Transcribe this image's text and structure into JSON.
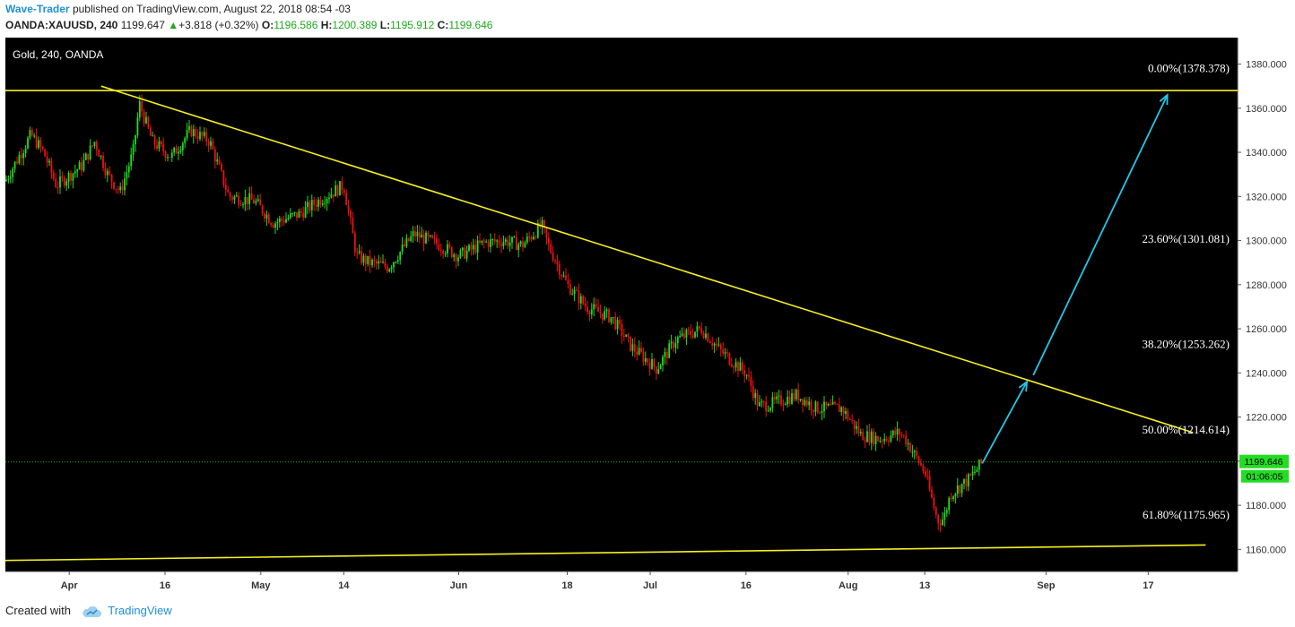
{
  "header": {
    "author": "Wave-Trader",
    "published_text": "published on TradingView.com, August 22, 2018 08:54 -03",
    "symbol": "OANDA:XAUUSD, 240",
    "last": "1199.647",
    "change": "+3.818 (+0.32%)",
    "open_label": "O:",
    "open": "1196.586",
    "high_label": "H:",
    "high": "1200.389",
    "low_label": "L:",
    "low": "1195.912",
    "close_label": "C:",
    "close": "1199.646"
  },
  "footer": {
    "created_with": "Created with",
    "brand": "TradingView"
  },
  "colors": {
    "background": "#000000",
    "up": "#22dd22",
    "down": "#ee1111",
    "trendline": "#f5f020",
    "arrow": "#22c8e8",
    "price_line": "#22aa22",
    "price_tag": "#22dd22",
    "fib_text": "#ffffff"
  },
  "chart_data": {
    "type": "candlestick",
    "title": "Gold, 240, OANDA",
    "x_ticks": [
      "Apr",
      "16",
      "May",
      "14",
      "Jun",
      "18",
      "Jul",
      "16",
      "Aug",
      "13",
      "Sep",
      "17"
    ],
    "y_ticks": [
      "1160.000",
      "1180.000",
      "1200.000",
      "1220.000",
      "1240.000",
      "1260.000",
      "1280.000",
      "1300.000",
      "1320.000",
      "1340.000",
      "1360.000",
      "1380.000"
    ],
    "ylim": [
      1150,
      1392
    ],
    "series": [
      {
        "key": "close_path",
        "points": [
          [
            "2018-03-22",
            1327
          ],
          [
            "2018-03-26",
            1348
          ],
          [
            "2018-03-28",
            1340
          ],
          [
            "2018-03-30",
            1325
          ],
          [
            "2018-04-03",
            1334
          ],
          [
            "2018-04-05",
            1345
          ],
          [
            "2018-04-07",
            1330
          ],
          [
            "2018-04-09",
            1322
          ],
          [
            "2018-04-11",
            1340
          ],
          [
            "2018-04-12",
            1362
          ],
          [
            "2018-04-14",
            1345
          ],
          [
            "2018-04-17",
            1338
          ],
          [
            "2018-04-20",
            1350
          ],
          [
            "2018-04-23",
            1345
          ],
          [
            "2018-04-26",
            1320
          ],
          [
            "2018-04-30",
            1318
          ],
          [
            "2018-05-03",
            1308
          ],
          [
            "2018-05-07",
            1312
          ],
          [
            "2018-05-10",
            1318
          ],
          [
            "2018-05-14",
            1325
          ],
          [
            "2018-05-16",
            1293
          ],
          [
            "2018-05-18",
            1290
          ],
          [
            "2018-05-21",
            1288
          ],
          [
            "2018-05-25",
            1303
          ],
          [
            "2018-05-29",
            1298
          ],
          [
            "2018-06-01",
            1293
          ],
          [
            "2018-06-05",
            1299
          ],
          [
            "2018-06-08",
            1300
          ],
          [
            "2018-06-11",
            1298
          ],
          [
            "2018-06-14",
            1307
          ],
          [
            "2018-06-15",
            1298
          ],
          [
            "2018-06-18",
            1280
          ],
          [
            "2018-06-21",
            1270
          ],
          [
            "2018-06-25",
            1265
          ],
          [
            "2018-06-28",
            1252
          ],
          [
            "2018-07-02",
            1242
          ],
          [
            "2018-07-05",
            1255
          ],
          [
            "2018-07-09",
            1260
          ],
          [
            "2018-07-12",
            1250
          ],
          [
            "2018-07-16",
            1240
          ],
          [
            "2018-07-18",
            1225
          ],
          [
            "2018-07-20",
            1226
          ],
          [
            "2018-07-24",
            1230
          ],
          [
            "2018-07-27",
            1224
          ],
          [
            "2018-07-31",
            1224
          ],
          [
            "2018-08-03",
            1212
          ],
          [
            "2018-08-06",
            1210
          ],
          [
            "2018-08-09",
            1213
          ],
          [
            "2018-08-10",
            1210
          ],
          [
            "2018-08-13",
            1195
          ],
          [
            "2018-08-15",
            1173
          ],
          [
            "2018-08-16",
            1174
          ],
          [
            "2018-08-17",
            1185
          ],
          [
            "2018-08-20",
            1192
          ],
          [
            "2018-08-22",
            1199.6
          ]
        ]
      }
    ],
    "last_price": "1199.646",
    "countdown": "01:06:05",
    "fib_levels": [
      {
        "label": "0.00%(1378.378)",
        "value": 1378.378
      },
      {
        "label": "23.60%(1301.081)",
        "value": 1301.081
      },
      {
        "label": "38.20%(1253.262)",
        "value": 1253.262
      },
      {
        "label": "50.00%(1214.614)",
        "value": 1214.614
      },
      {
        "label": "61.80%(1175.965)",
        "value": 1175.965
      }
    ],
    "lines": [
      {
        "kind": "horizontal",
        "price": 1368
      },
      {
        "kind": "trend",
        "from": [
          "2018-04-06",
          1370
        ],
        "to": [
          "2018-09-24",
          1213
        ]
      },
      {
        "kind": "trend",
        "from": [
          "2018-03-22",
          1155
        ],
        "to": [
          "2018-09-26",
          1162
        ]
      }
    ],
    "arrows": [
      {
        "from": [
          "2018-08-22",
          1199
        ],
        "to": [
          "2018-08-29",
          1236
        ]
      },
      {
        "from": [
          "2018-08-30",
          1239
        ],
        "to": [
          "2018-09-20",
          1366
        ]
      }
    ]
  }
}
